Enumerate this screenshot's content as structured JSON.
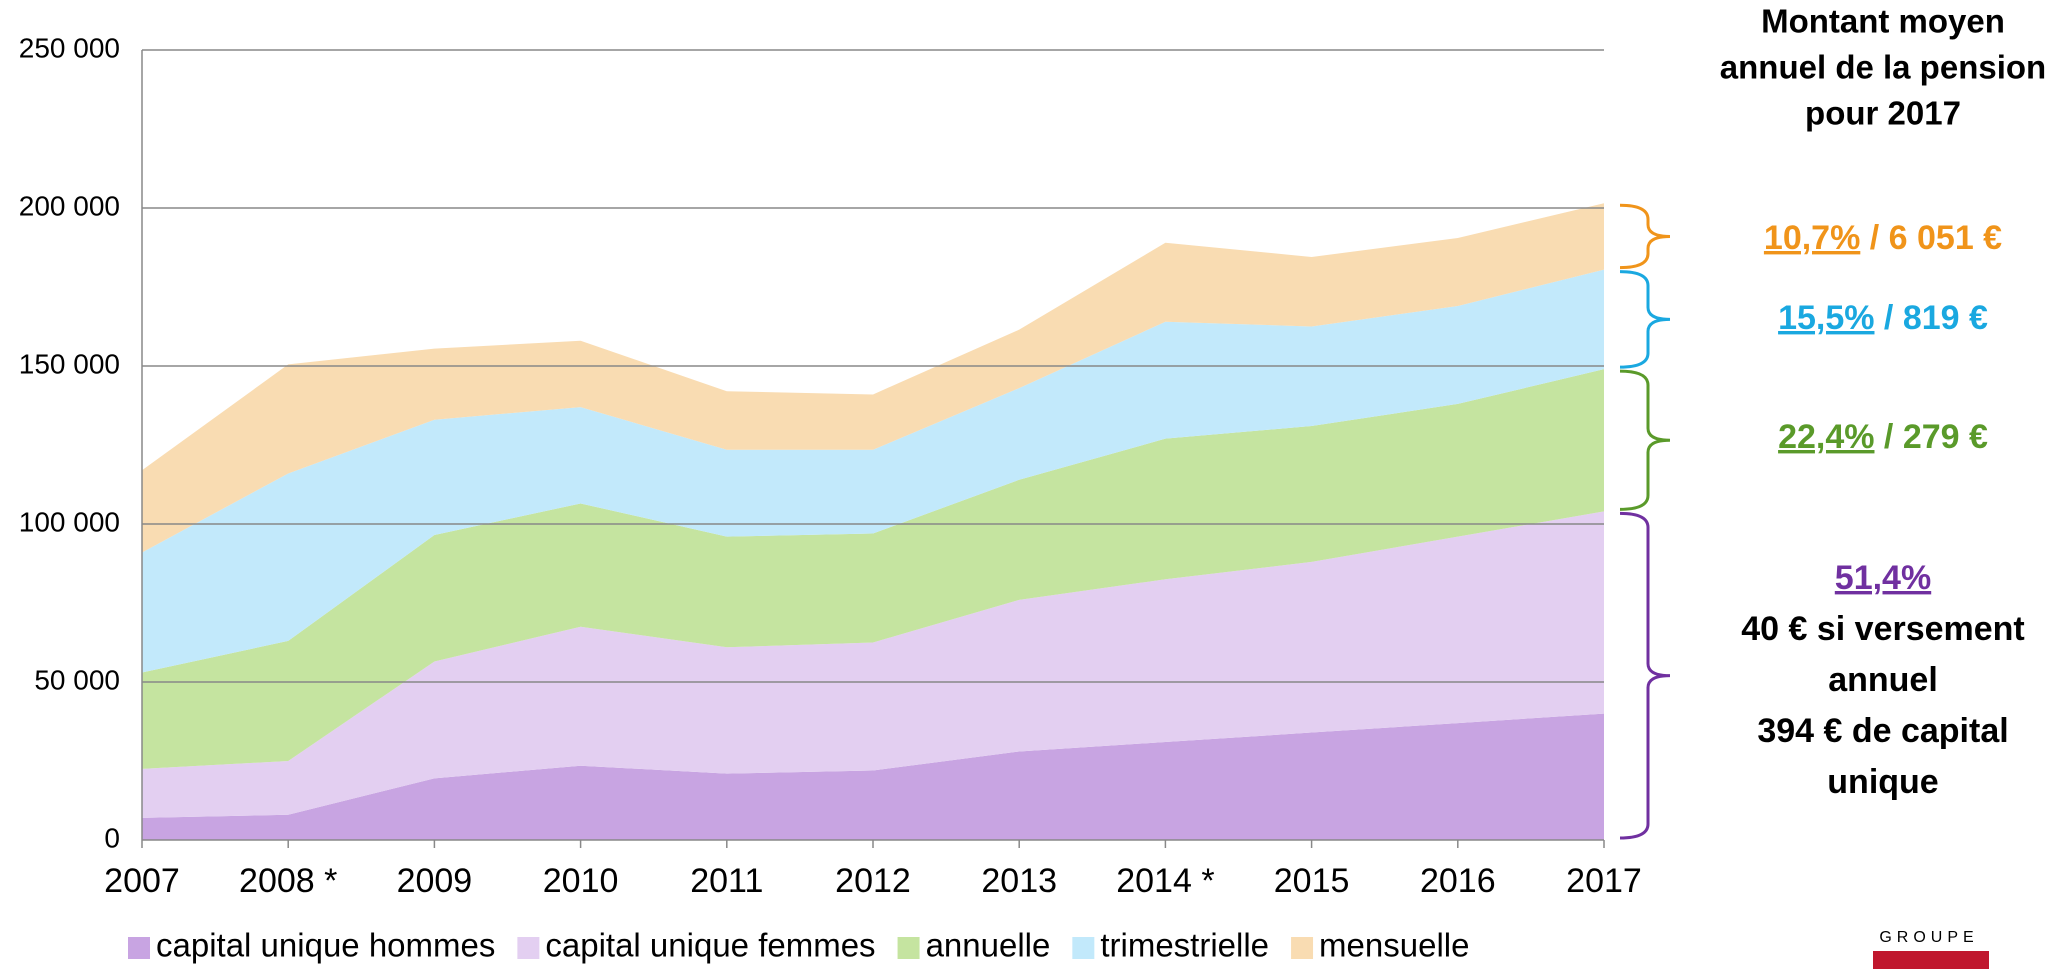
{
  "chart_data": {
    "type": "stacked_area",
    "categories": [
      "2007",
      "2008 *",
      "2009",
      "2010",
      "2011",
      "2012",
      "2013",
      "2014 *",
      "2015",
      "2016",
      "2017"
    ],
    "series": [
      {
        "name": "capital unique hommes",
        "color": "#c8a4e2",
        "values": [
          7000,
          8000,
          19500,
          23500,
          21000,
          22000,
          28000,
          31000,
          34000,
          37000,
          40000
        ]
      },
      {
        "name": "capital unique femmes",
        "color": "#e3cff1",
        "values": [
          15500,
          17000,
          37000,
          44000,
          40000,
          40500,
          48000,
          51500,
          54000,
          59000,
          64000
        ]
      },
      {
        "name": "annuelle",
        "color": "#c5e4a0",
        "values": [
          30500,
          38000,
          40000,
          39000,
          35000,
          34500,
          38000,
          44500,
          43000,
          42000,
          45000
        ]
      },
      {
        "name": "trimestrielle",
        "color": "#c2e9fb",
        "values": [
          38000,
          53000,
          36500,
          30500,
          27500,
          26500,
          29000,
          37000,
          31500,
          31000,
          31500
        ]
      },
      {
        "name": "mensuelle",
        "color": "#f9dcb2",
        "values": [
          26000,
          34500,
          22500,
          21000,
          18500,
          17500,
          18500,
          25000,
          22000,
          21500,
          21000
        ]
      }
    ],
    "ylim": [
      0,
      250000
    ],
    "yticks": [
      {
        "value": 0,
        "label": "0"
      },
      {
        "value": 50000,
        "label": "50 000"
      },
      {
        "value": 100000,
        "label": "100 000"
      },
      {
        "value": 150000,
        "label": "150 000"
      },
      {
        "value": 200000,
        "label": "200 000"
      },
      {
        "value": 250000,
        "label": "250 000"
      }
    ],
    "grid": true,
    "legend": "bottom",
    "side_title": [
      "Montant moyen",
      "annuel de la pension",
      "pour 2017"
    ],
    "annotations": [
      {
        "pct": "10,7%",
        "text": " / 6 051 €",
        "color": "#f0941a"
      },
      {
        "pct": "15,5%",
        "text": " / 819 €",
        "color": "#1aa8e0"
      },
      {
        "pct": "22,4%",
        "text": " / 279 €",
        "color": "#5a9a2a"
      },
      {
        "pct": "51,4%",
        "lines": [
          "40 € si versement",
          "annuel",
          "394 € de capital",
          "unique"
        ],
        "color": "#7030a0"
      }
    ],
    "logo": "GROUPE"
  }
}
